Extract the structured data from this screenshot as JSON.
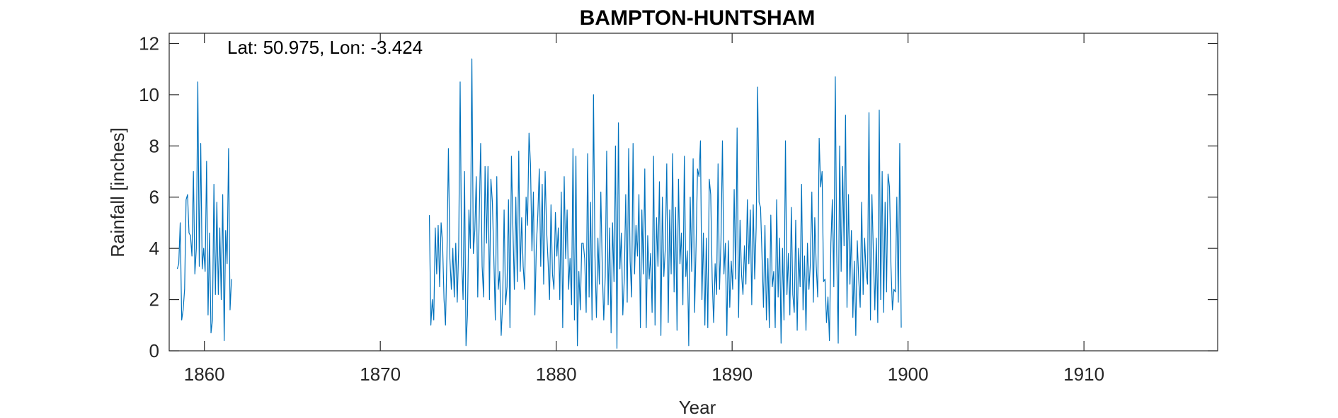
{
  "chart_data": {
    "type": "line",
    "title": "BAMPTON-HUNTSHAM",
    "xlabel": "Year",
    "ylabel": "Rainfall [inches]",
    "annotation": "Lat: 50.975, Lon: -3.424",
    "xlim": [
      1858,
      1917.6
    ],
    "ylim": [
      0,
      12.4
    ],
    "xticks": [
      1860,
      1870,
      1880,
      1890,
      1900,
      1910
    ],
    "yticks": [
      0,
      2,
      4,
      6,
      8,
      10,
      12
    ],
    "grid": false,
    "color": "#0072BD",
    "series": [
      {
        "name": "",
        "segments": [
          {
            "start": 1858.46,
            "step": 0.0833,
            "values": [
              3.2,
              3.4,
              5.0,
              1.2,
              1.6,
              2.4,
              5.9,
              6.1,
              4.6,
              4.5,
              3.7,
              7.0,
              3.0,
              4.0,
              10.5,
              3.3,
              8.1,
              3.2,
              4.0,
              3.1,
              7.4,
              1.4,
              4.6,
              0.7,
              1.2,
              6.5,
              2.2,
              5.8,
              2.2,
              4.8,
              2.0,
              6.1,
              0.4,
              4.7,
              3.4,
              7.9,
              1.6,
              2.8
            ]
          },
          {
            "start": 1872.79,
            "step": 0.0833,
            "values": [
              5.3,
              1.0,
              2.0,
              1.2,
              4.8,
              3.0,
              4.9,
              2.5,
              5.0,
              4.2,
              2.0,
              1.0,
              3.8,
              7.9,
              3.6,
              2.4,
              4.0,
              2.1,
              4.2,
              1.9,
              4.0,
              10.5,
              3.6,
              2.0,
              7.0,
              0.2,
              1.4,
              5.5,
              4.0,
              11.4,
              3.8,
              4.7,
              6.8,
              2.1,
              5.2,
              8.1,
              3.3,
              2.1,
              7.2,
              4.2,
              7.2,
              2.0,
              6.7,
              5.8,
              3.6,
              1.2,
              6.8,
              2.4,
              3.1,
              0.6,
              1.9,
              5.5,
              1.8,
              2.5,
              5.9,
              0.9,
              7.6,
              4.8,
              2.4,
              6.0,
              2.7,
              7.8,
              3.1,
              5.2,
              3.3,
              2.4,
              6.0,
              4.9,
              8.5,
              7.3,
              3.9,
              6.2,
              1.4,
              4.1,
              5.3,
              7.1,
              3.3,
              6.5,
              2.6,
              7.0,
              4.7,
              3.5,
              2.0,
              5.7,
              3.0,
              2.4,
              5.4,
              3.7,
              4.8,
              2.0,
              6.2,
              0.9,
              6.8,
              3.6,
              5.5,
              2.4,
              3.6,
              1.8,
              7.9,
              1.2,
              7.6,
              0.2,
              3.1,
              1.6,
              4.2,
              4.2,
              3.6,
              1.5,
              7.7,
              2.1,
              5.8,
              1.2,
              10.0,
              3.7,
              1.3,
              4.4,
              2.6,
              6.2,
              3.2,
              1.2,
              2.9,
              7.8,
              1.8,
              4.8,
              0.7,
              5.0,
              2.7,
              8.0,
              0.1,
              8.9,
              3.2,
              4.6,
              1.4,
              2.8,
              6.1,
              1.9,
              7.9,
              3.5,
              2.1,
              8.1,
              3.0,
              4.9,
              3.7,
              6.1,
              0.9,
              5.5,
              3.0,
              7.1,
              0.9,
              4.5,
              2.8,
              3.8,
              1.5,
              7.6,
              1.0,
              5.2,
              3.3,
              6.6,
              0.6,
              6.0,
              2.9,
              4.0,
              7.3,
              1.1,
              5.5,
              3.0,
              7.7,
              2.3,
              5.6,
              0.8,
              6.7,
              3.4,
              4.6,
              1.8,
              7.6,
              2.9,
              3.9,
              0.2,
              6.0,
              3.1,
              7.5,
              1.5,
              4.1,
              7.1,
              6.8,
              8.2,
              2.0,
              4.6,
              1.0,
              4.4,
              0.9,
              6.7,
              6.1,
              2.8,
              1.1,
              3.4,
              2.2,
              7.3,
              2.4,
              4.3,
              8.2,
              3.0,
              4.2,
              0.6,
              4.3,
              1.7,
              3.5,
              2.4,
              6.3,
              2.8,
              8.7,
              1.3,
              5.1,
              3.0,
              2.2,
              4.1,
              2.6,
              5.9,
              3.4,
              5.5,
              1.8,
              5.7,
              2.8,
              4.8,
              10.3,
              5.8,
              5.6,
              3.7,
              1.7,
              4.9,
              1.2,
              3.6,
              0.9,
              5.3,
              2.5,
              3.1,
              0.9,
              5.9,
              2.1,
              4.4,
              0.3,
              4.0,
              1.2,
              8.2,
              2.2,
              3.8,
              1.4,
              5.6,
              2.2,
              1.5,
              5.1,
              0.8,
              4.0,
              2.5,
              6.5,
              1.6,
              3.7,
              0.8,
              4.2,
              2.4,
              3.4,
              6.2,
              1.9,
              5.2,
              3.3,
              2.1,
              8.3,
              6.4,
              7.0,
              2.7,
              2.8,
              1.1,
              2.1,
              0.4,
              4.2,
              5.9,
              2.5,
              10.7,
              3.8,
              0.3,
              8.0,
              3.1,
              7.2,
              4.1,
              9.2,
              1.7,
              6.1,
              2.6,
              4.7,
              1.3,
              3.5,
              0.6,
              4.3,
              2.8,
              1.7,
              5.8,
              2.2,
              4.4,
              3.1,
              2.6,
              9.3,
              1.2,
              6.1,
              3.8,
              1.6,
              4.4,
              1.1,
              9.4,
              2.0,
              7.0,
              1.5,
              5.8,
              2.3,
              6.9,
              6.4,
              3.3,
              1.6,
              2.4,
              2.3,
              6.0,
              1.9,
              8.1,
              0.9
            ]
          }
        ]
      }
    ]
  }
}
